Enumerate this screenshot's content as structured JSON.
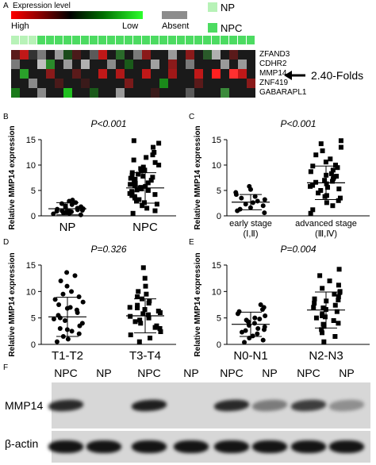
{
  "panel_a": {
    "panel_label": "A",
    "legend_title": "Expression level",
    "legend_high": "High",
    "legend_low": "Low",
    "legend_absent": "Absent",
    "legend_np": "NP",
    "legend_npc": "NPC",
    "genes": [
      "ZFAND3",
      "CDHR2",
      "MMP14",
      "ZNF419",
      "GABARAPL1"
    ],
    "fold_label": "2.40-Folds",
    "colors": {
      "np": "#b7f2b7",
      "npc": "#4cdb61",
      "absent": "#8c8c8c"
    },
    "group_bar": [
      "np",
      "np",
      "np",
      "npc",
      "npc",
      "npc",
      "npc",
      "npc",
      "npc",
      "npc",
      "npc",
      "npc",
      "npc",
      "npc",
      "npc",
      "npc",
      "npc",
      "npc",
      "npc",
      "npc",
      "npc",
      "npc",
      "npc",
      "npc",
      "npc",
      "npc",
      "npc",
      "npc"
    ],
    "heatmap": [
      [
        "#5a1a1a",
        "#c01818",
        "#333",
        "#7a7a7a",
        "#1a1a1a",
        "#9a9a9a",
        "#1a4a1a",
        "#4a1a1a",
        "#1a1a1a",
        "#5a5a5a",
        "#c01818",
        "#1a1a1a",
        "#2a6a2a",
        "#1a1a1a",
        "#7a7a7a",
        "#8a1a1a",
        "#1a1a1a",
        "#1a1a1a",
        "#9a9a9a",
        "#1a1a1a",
        "#8a1a1a",
        "#1a1a1a",
        "#2a5a2a",
        "#b0b0b0",
        "#1a1a1a",
        "#5a1a1a",
        "#1a1a1a",
        "#1a1a1a"
      ],
      [
        "#7a7a7a",
        "#1a1a1a",
        "#1a1a1a",
        "#c0c0c0",
        "#2a8a2a",
        "#1a1a1a",
        "#9a9a9a",
        "#1a1a1a",
        "#b0b0b0",
        "#1a1a1a",
        "#1a1a1a",
        "#8a8a8a",
        "#1a1a1a",
        "#1a5a1a",
        "#1a1a1a",
        "#1a1a1a",
        "#a0a0a0",
        "#1a1a1a",
        "#8a1a1a",
        "#1a1a1a",
        "#7a7a7a",
        "#1a1a1a",
        "#1a1a1a",
        "#1a1a1a",
        "#9a9a9a",
        "#1a1a1a",
        "#9a9a9a",
        "#1a1a1a"
      ],
      [
        "#1a1a1a",
        "#2aa02a",
        "#1a1a1a",
        "#1a1a1a",
        "#8a1a1a",
        "#1a1a1a",
        "#1a1a1a",
        "#5a1a1a",
        "#1a1a1a",
        "#1a1a1a",
        "#c01818",
        "#1a1a1a",
        "#b01818",
        "#1a1a1a",
        "#1a1a1a",
        "#c01818",
        "#1a1a1a",
        "#1a1a1a",
        "#a01818",
        "#1a1a1a",
        "#1a1a1a",
        "#c01818",
        "#1a1a1a",
        "#ff2020",
        "#1a1a1a",
        "#ff3030",
        "#c01818",
        "#1a1a1a"
      ],
      [
        "#1a1a1a",
        "#1a1a1a",
        "#8a8a8a",
        "#1a1a1a",
        "#1a1a1a",
        "#4a1a1a",
        "#1a1a1a",
        "#1a1a1a",
        "#3a1a1a",
        "#1a1a1a",
        "#1a1a1a",
        "#1a1a1a",
        "#1a1a1a",
        "#7a1a1a",
        "#1a1a1a",
        "#1a1a1a",
        "#1a1a1a",
        "#1a8a1a",
        "#1a1a1a",
        "#1a1a1a",
        "#1a1a1a",
        "#5a1a1a",
        "#1a1a1a",
        "#1a1a1a",
        "#1a1a1a",
        "#1a1a1a",
        "#1a1a1a",
        "#8a1a1a"
      ],
      [
        "#1a7a1a",
        "#1a1a1a",
        "#1a1a1a",
        "#8a8a8a",
        "#1a1a1a",
        "#1a1a1a",
        "#20c020",
        "#1a1a1a",
        "#1a1a1a",
        "#1a5a1a",
        "#1a1a1a",
        "#1a1a1a",
        "#9a9a9a",
        "#1a1a1a",
        "#1a1a1a",
        "#1a1a1a",
        "#3a1a1a",
        "#1a1a1a",
        "#1a1a1a",
        "#1a1a1a",
        "#5a5a5a",
        "#1a1a1a",
        "#1a1a1a",
        "#1a1a1a",
        "#3a8a3a",
        "#1a1a1a",
        "#1a1a1a",
        "#1a1a1a"
      ]
    ]
  },
  "chart_data": [
    {
      "panel_label": "B",
      "type": "scatter",
      "title": "P<0.001",
      "ylabel": "Relative MMP14 expression",
      "ylim": [
        0,
        15
      ],
      "yticks": [
        "0",
        "5",
        "10",
        "15"
      ],
      "categories": [
        "NP",
        "NPC"
      ],
      "series": [
        {
          "category": "NP",
          "mean": 1.4,
          "sd": 1.2,
          "marker": "circle",
          "values": [
            0.2,
            0.4,
            0.5,
            0.6,
            0.7,
            0.8,
            0.9,
            1.0,
            1.0,
            1.1,
            1.2,
            1.3,
            1.4,
            1.5,
            1.6,
            1.8,
            2.0,
            2.2,
            2.4,
            2.6,
            2.9,
            3.1
          ]
        },
        {
          "category": "NPC",
          "mean": 5.5,
          "sd": 3.0,
          "marker": "square",
          "values": [
            0.5,
            1.0,
            1.5,
            2.0,
            2.3,
            2.6,
            3.0,
            3.2,
            3.5,
            3.8,
            4.0,
            4.2,
            4.4,
            4.6,
            4.8,
            5.0,
            5.1,
            5.3,
            5.5,
            5.6,
            5.8,
            6.0,
            6.2,
            6.4,
            6.5,
            6.7,
            7.0,
            7.2,
            7.4,
            7.6,
            7.8,
            8.0,
            8.2,
            8.5,
            8.8,
            9.0,
            9.3,
            9.6,
            10.0,
            10.5,
            11.0,
            11.5,
            12.0,
            12.5,
            13.5,
            14.3,
            14.8
          ]
        }
      ]
    },
    {
      "panel_label": "C",
      "type": "scatter",
      "title": "P<0.001",
      "ylabel": "Relative MMP14 expression",
      "ylim": [
        0,
        15
      ],
      "yticks": [
        "0",
        "5",
        "10",
        "15"
      ],
      "categories": [
        "early stage\n(Ⅰ,Ⅱ)",
        "advanced stage\n(Ⅲ,Ⅳ)"
      ],
      "category_lines": [
        [
          "early stage",
          "(Ⅰ,Ⅱ)"
        ],
        [
          "advanced stage",
          "(Ⅲ,Ⅳ)"
        ]
      ],
      "series": [
        {
          "category": "early stage",
          "mean": 2.7,
          "sd": 1.5,
          "marker": "circle",
          "values": [
            0.6,
            1.0,
            1.3,
            1.6,
            2.0,
            2.3,
            2.6,
            2.9,
            3.2,
            3.5,
            3.8,
            4.2,
            4.6,
            5.2,
            5.8
          ]
        },
        {
          "category": "advanced stage",
          "mean": 6.5,
          "sd": 3.3,
          "marker": "square",
          "values": [
            0.5,
            1.2,
            2.0,
            2.6,
            3.0,
            3.5,
            4.0,
            4.5,
            5.0,
            5.3,
            5.6,
            6.0,
            6.3,
            6.6,
            7.0,
            7.3,
            7.6,
            8.0,
            8.3,
            8.7,
            9.0,
            9.5,
            10.0,
            10.6,
            11.2,
            12.0,
            12.8,
            13.5,
            14.2,
            14.8,
            3.8,
            6.8,
            7.8,
            5.8,
            9.8
          ]
        }
      ]
    },
    {
      "panel_label": "D",
      "type": "scatter",
      "title": "P=0.326",
      "ylabel": "Relative MMP14 expression",
      "ylim": [
        0,
        15
      ],
      "yticks": [
        "0",
        "5",
        "10",
        "15"
      ],
      "categories": [
        "T1-T2",
        "T3-T4"
      ],
      "series": [
        {
          "category": "T1-T2",
          "mean": 5.2,
          "sd": 3.7,
          "marker": "circle",
          "values": [
            0.5,
            1.0,
            1.5,
            2.0,
            2.5,
            3.0,
            3.5,
            4.0,
            4.5,
            5.0,
            5.5,
            6.0,
            6.5,
            7.0,
            7.5,
            8.0,
            8.5,
            9.0,
            9.5,
            10.0,
            11.0,
            12.0,
            13.0,
            13.6,
            2.8,
            4.8,
            6.8
          ]
        },
        {
          "category": "T3-T4",
          "mean": 5.4,
          "sd": 3.2,
          "marker": "square",
          "values": [
            0.5,
            1.2,
            1.8,
            2.4,
            3.0,
            3.5,
            4.0,
            4.3,
            4.6,
            5.0,
            5.3,
            5.6,
            6.0,
            6.3,
            6.6,
            7.0,
            7.4,
            7.8,
            8.2,
            8.6,
            9.0,
            9.5,
            10.0,
            11.0,
            12.5,
            14.5,
            3.2,
            5.8,
            6.9
          ]
        }
      ]
    },
    {
      "panel_label": "E",
      "type": "scatter",
      "title": "P=0.004",
      "ylabel": "Relative MMP14 expression",
      "ylim": [
        0,
        15
      ],
      "yticks": [
        "0",
        "5",
        "10",
        "15"
      ],
      "categories": [
        "N0-N1",
        "N2-N3"
      ],
      "series": [
        {
          "category": "N0-N1",
          "mean": 3.8,
          "sd": 2.3,
          "marker": "circle",
          "values": [
            0.4,
            0.8,
            1.2,
            1.6,
            2.0,
            2.3,
            2.6,
            3.0,
            3.3,
            3.6,
            4.0,
            4.3,
            4.6,
            5.0,
            5.4,
            5.8,
            6.2,
            6.6,
            7.0,
            7.5,
            2.8,
            4.8
          ]
        },
        {
          "category": "N2-N3",
          "mean": 6.5,
          "sd": 3.4,
          "marker": "square",
          "values": [
            0.5,
            1.5,
            2.2,
            2.8,
            3.4,
            4.0,
            4.5,
            5.0,
            5.4,
            5.8,
            6.2,
            6.6,
            7.0,
            7.4,
            7.8,
            8.2,
            8.6,
            9.0,
            9.5,
            10.0,
            10.6,
            11.2,
            12.0,
            13.0,
            14.2,
            3.8,
            6.9,
            8.4,
            5.2,
            9.8
          ]
        }
      ]
    }
  ],
  "panel_f": {
    "panel_label": "F",
    "lane_labels": [
      "NPC",
      "NP",
      "NPC",
      "NP",
      "NPC",
      "NP",
      "NPC",
      "NP"
    ],
    "row_labels": [
      "MMP14",
      "β-actin"
    ],
    "mmp14_intensity": [
      0.85,
      0.0,
      0.9,
      0.0,
      0.85,
      0.45,
      0.75,
      0.35
    ],
    "actin_intensity": [
      0.95,
      0.95,
      0.95,
      0.95,
      0.95,
      0.95,
      0.95,
      0.95
    ]
  }
}
